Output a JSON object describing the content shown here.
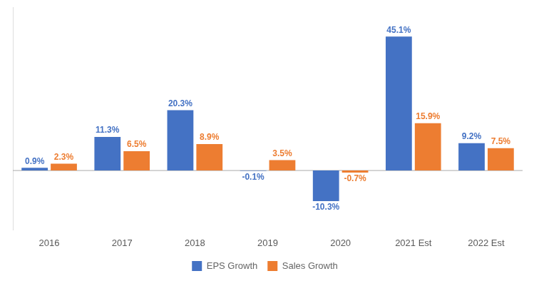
{
  "chart_data": {
    "type": "bar",
    "categories": [
      "2016",
      "2017",
      "2018",
      "2019",
      "2020",
      "2021 Est",
      "2022 Est"
    ],
    "series": [
      {
        "name": "EPS Growth",
        "color": "#4472C4",
        "values": [
          0.9,
          11.3,
          20.3,
          -0.1,
          -10.3,
          45.1,
          9.2
        ],
        "value_labels": [
          "0.9%",
          "11.3%",
          "20.3%",
          "-0.1%",
          "-10.3%",
          "45.1%",
          "9.2%"
        ]
      },
      {
        "name": "Sales Growth",
        "color": "#ED7D31",
        "values": [
          2.3,
          6.5,
          8.9,
          3.5,
          -0.7,
          15.9,
          7.5
        ],
        "value_labels": [
          "2.3%",
          "6.5%",
          "8.9%",
          "3.5%",
          "-0.7%",
          "15.9%",
          "7.5%"
        ]
      }
    ],
    "ylim": [
      -20,
      55
    ],
    "grid": false,
    "legend": "bottom",
    "data_labels": true,
    "tick_labels": "x"
  }
}
